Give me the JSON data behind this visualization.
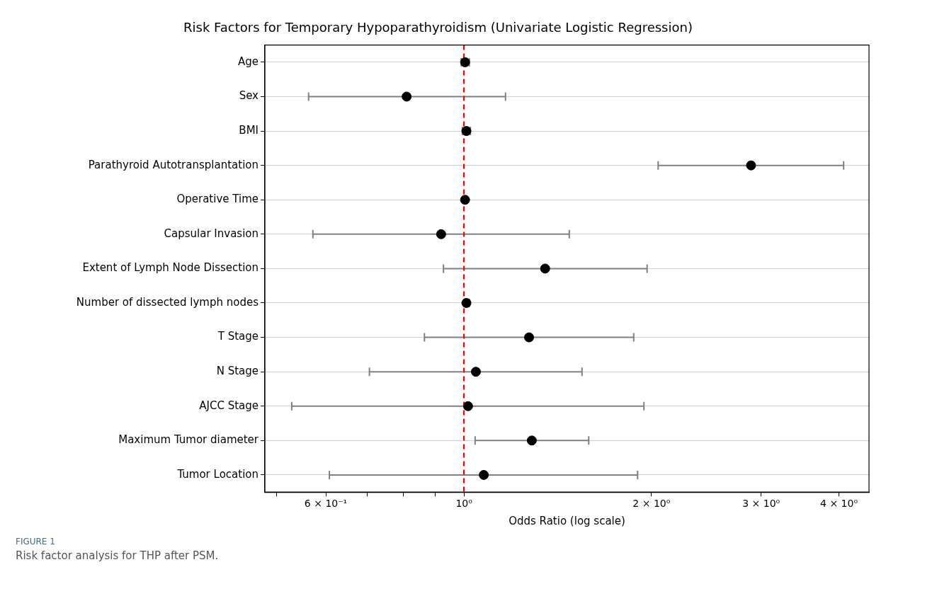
{
  "chart_data": {
    "type": "scatter",
    "orientation": "horizontal",
    "title": "Risk Factors for Temporary Hypoparathyroidism (Univariate Logistic Regression)",
    "xlabel": "Odds Ratio (log scale)",
    "categories": [
      "Age",
      "Sex",
      "BMI",
      "Parathyroid Autotransplantation",
      "Operative Time",
      "Capsular Invasion",
      "Extent of Lymph Node Dissection",
      "Number of dissected lymph nodes",
      "T Stage",
      "N Stage",
      "AJCC Stage",
      "Maximum Tumor diameter",
      "Tumor Location"
    ],
    "series": [
      {
        "color": "#000000",
        "values": [
          1.004,
          0.809,
          1.009,
          2.89,
          1.004,
          0.919,
          1.35,
          1.009,
          1.272,
          1.045,
          1.015,
          1.285,
          1.076
        ],
        "errors": [
          [
            0.99,
            1.02
          ],
          [
            0.563,
            1.166
          ],
          [
            0.994,
            1.024
          ],
          [
            2.05,
            4.07
          ],
          [
            1.0,
            1.01
          ],
          [
            0.572,
            1.476
          ],
          [
            0.927,
            1.968
          ],
          [
            1.0,
            1.02
          ],
          [
            0.864,
            1.873
          ],
          [
            0.705,
            1.547
          ],
          [
            0.529,
            1.945
          ],
          [
            1.042,
            1.586
          ],
          [
            0.608,
            1.9
          ]
        ]
      }
    ],
    "log": "x",
    "xlim": [
      0.479,
      4.47
    ],
    "xticks": [
      {
        "value": 0.5,
        "label": null
      },
      {
        "value": 0.6,
        "label": "6 × 10⁻¹"
      },
      {
        "value": 0.7,
        "label": null
      },
      {
        "value": 0.8,
        "label": null
      },
      {
        "value": 0.9,
        "label": null
      },
      {
        "value": 1,
        "label": "10⁰"
      },
      {
        "value": 2,
        "label": "2 × 10⁰"
      },
      {
        "value": 3,
        "label": "3 × 10⁰"
      },
      {
        "value": 4,
        "label": "4 × 10⁰"
      }
    ],
    "ref_lines": [
      {
        "axis": "x",
        "value": 1,
        "color": "#ff0000",
        "line_style": "dashed"
      }
    ],
    "grid": "y",
    "marker": "circle",
    "legend": false,
    "annotations": [
      "FIGURE 1",
      "Risk factor analysis for THP after PSM."
    ]
  }
}
